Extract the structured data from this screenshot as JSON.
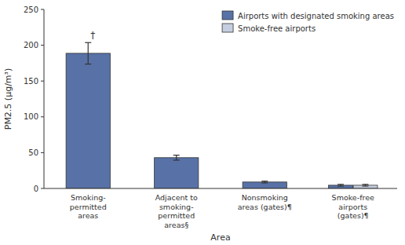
{
  "chart_data": {
    "type": "bar",
    "xlabel": "Area",
    "ylabel": "PM2.5 (μg/m³)",
    "categories": [
      "Smoking-\npermitted\nareas",
      "Adjacent to\nsmoking-\npermitted\nareas§",
      "Nonsmoking\nareas (gates)¶",
      "Smoke-free\nairports\n(gates)¶"
    ],
    "series": [
      {
        "name": "Airports with designated smoking areas",
        "color": "#5872a7",
        "values": [
          188.7,
          43.0,
          9.0,
          4.5
        ],
        "errors": [
          15.0,
          3.5,
          1.2,
          1.2
        ]
      },
      {
        "name": "Smoke-free airports",
        "color": "#c5cee0",
        "values": [
          null,
          null,
          null,
          4.5
        ],
        "errors": [
          null,
          null,
          null,
          1.2
        ]
      }
    ],
    "ylim": [
      0,
      250
    ],
    "yticks": [
      0,
      50,
      100,
      150,
      200,
      250
    ],
    "grid": false,
    "legend": "upper right",
    "annotations": [
      {
        "text": "†",
        "category": "Smoking-\npermitted\nareas"
      }
    ]
  }
}
